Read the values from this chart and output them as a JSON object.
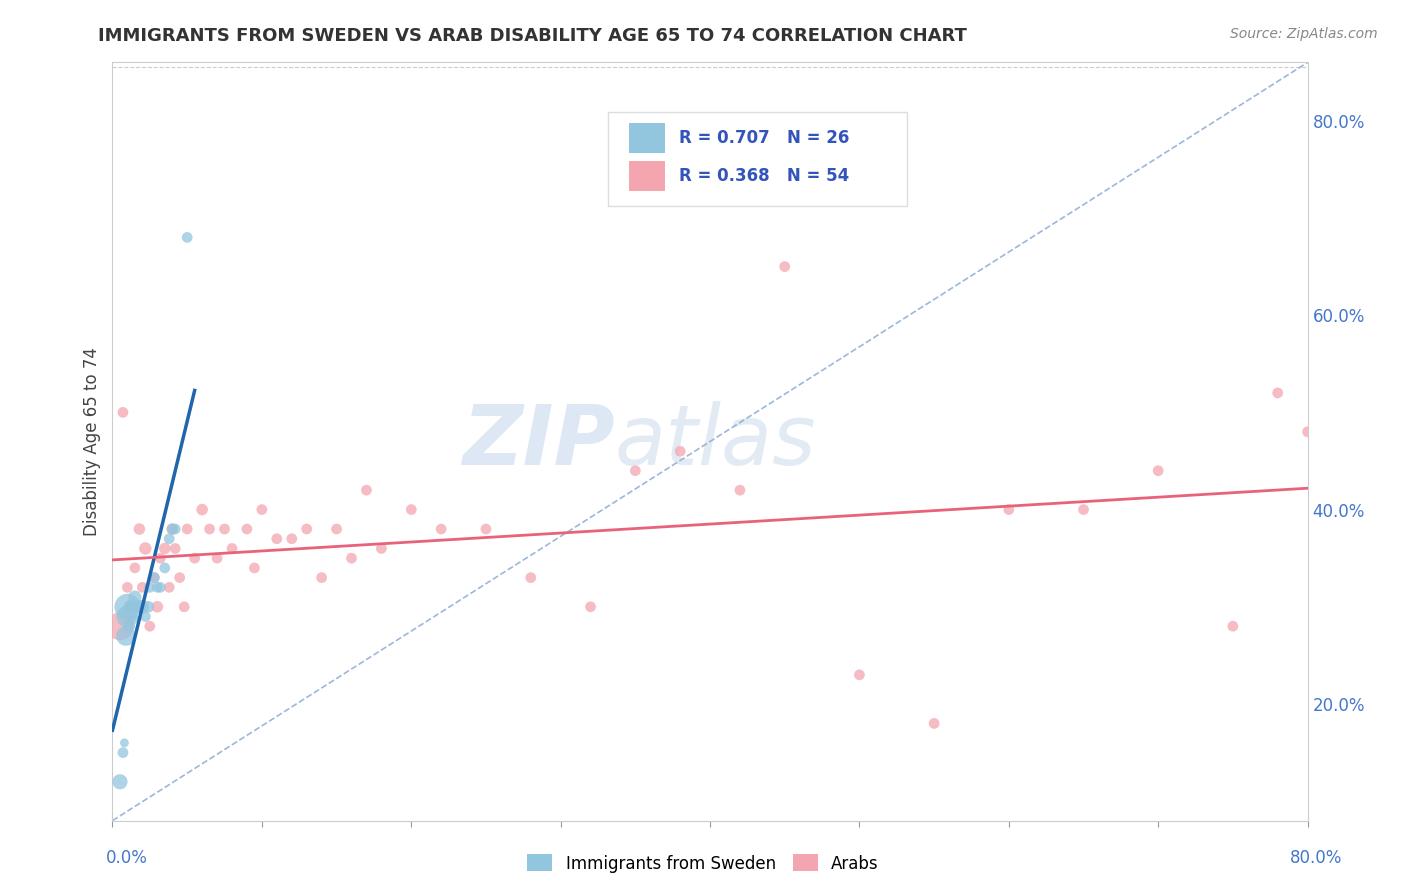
{
  "title": "IMMIGRANTS FROM SWEDEN VS ARAB DISABILITY AGE 65 TO 74 CORRELATION CHART",
  "source": "Source: ZipAtlas.com",
  "ylabel": "Disability Age 65 to 74",
  "ytick_labels": [
    "20.0%",
    "40.0%",
    "60.0%",
    "80.0%"
  ],
  "ytick_values": [
    0.2,
    0.4,
    0.6,
    0.8
  ],
  "xlim": [
    0.0,
    0.8
  ],
  "ylim": [
    0.08,
    0.86
  ],
  "legend_blue_label": "R = 0.707   N = 26",
  "legend_pink_label": "R = 0.368   N = 54",
  "blue_color": "#92c5de",
  "pink_color": "#f4a6b0",
  "blue_line_color": "#2166ac",
  "pink_line_color": "#e8637a",
  "dashed_color": "#92afd7",
  "blue_R": 0.707,
  "pink_R": 0.368,
  "blue_N": 26,
  "pink_N": 54,
  "blue_scatter_x": [
    0.005,
    0.007,
    0.008,
    0.009,
    0.01,
    0.01,
    0.011,
    0.012,
    0.013,
    0.014,
    0.015,
    0.016,
    0.017,
    0.018,
    0.02,
    0.022,
    0.024,
    0.025,
    0.028,
    0.03,
    0.032,
    0.035,
    0.038,
    0.04,
    0.042,
    0.05
  ],
  "blue_scatter_y": [
    0.12,
    0.15,
    0.16,
    0.27,
    0.29,
    0.3,
    0.28,
    0.3,
    0.29,
    0.3,
    0.31,
    0.3,
    0.3,
    0.3,
    0.3,
    0.29,
    0.3,
    0.32,
    0.33,
    0.32,
    0.32,
    0.34,
    0.37,
    0.38,
    0.38,
    0.68
  ],
  "blue_scatter_size": [
    120,
    60,
    40,
    200,
    250,
    350,
    80,
    100,
    60,
    70,
    90,
    80,
    60,
    90,
    100,
    60,
    70,
    60,
    60,
    60,
    60,
    60,
    60,
    60,
    60,
    60
  ],
  "pink_scatter_x": [
    0.005,
    0.007,
    0.01,
    0.012,
    0.015,
    0.017,
    0.018,
    0.02,
    0.022,
    0.025,
    0.028,
    0.03,
    0.032,
    0.035,
    0.038,
    0.04,
    0.042,
    0.045,
    0.048,
    0.05,
    0.055,
    0.06,
    0.065,
    0.07,
    0.075,
    0.08,
    0.09,
    0.095,
    0.1,
    0.11,
    0.12,
    0.13,
    0.14,
    0.15,
    0.16,
    0.17,
    0.18,
    0.2,
    0.22,
    0.25,
    0.28,
    0.32,
    0.35,
    0.38,
    0.42,
    0.45,
    0.5,
    0.55,
    0.6,
    0.65,
    0.7,
    0.75,
    0.78,
    0.8
  ],
  "pink_scatter_y": [
    0.28,
    0.5,
    0.32,
    0.3,
    0.34,
    0.3,
    0.38,
    0.32,
    0.36,
    0.28,
    0.33,
    0.3,
    0.35,
    0.36,
    0.32,
    0.38,
    0.36,
    0.33,
    0.3,
    0.38,
    0.35,
    0.4,
    0.38,
    0.35,
    0.38,
    0.36,
    0.38,
    0.34,
    0.4,
    0.37,
    0.37,
    0.38,
    0.33,
    0.38,
    0.35,
    0.42,
    0.36,
    0.4,
    0.38,
    0.38,
    0.33,
    0.3,
    0.44,
    0.46,
    0.42,
    0.65,
    0.23,
    0.18,
    0.4,
    0.4,
    0.44,
    0.28,
    0.52,
    0.48
  ],
  "pink_scatter_size": [
    400,
    60,
    60,
    70,
    60,
    60,
    70,
    60,
    80,
    60,
    60,
    70,
    60,
    70,
    60,
    70,
    60,
    60,
    60,
    60,
    60,
    70,
    60,
    60,
    60,
    60,
    60,
    60,
    60,
    60,
    60,
    60,
    60,
    60,
    60,
    60,
    60,
    60,
    60,
    60,
    60,
    60,
    60,
    60,
    60,
    60,
    60,
    60,
    60,
    60,
    60,
    60,
    60,
    60
  ]
}
